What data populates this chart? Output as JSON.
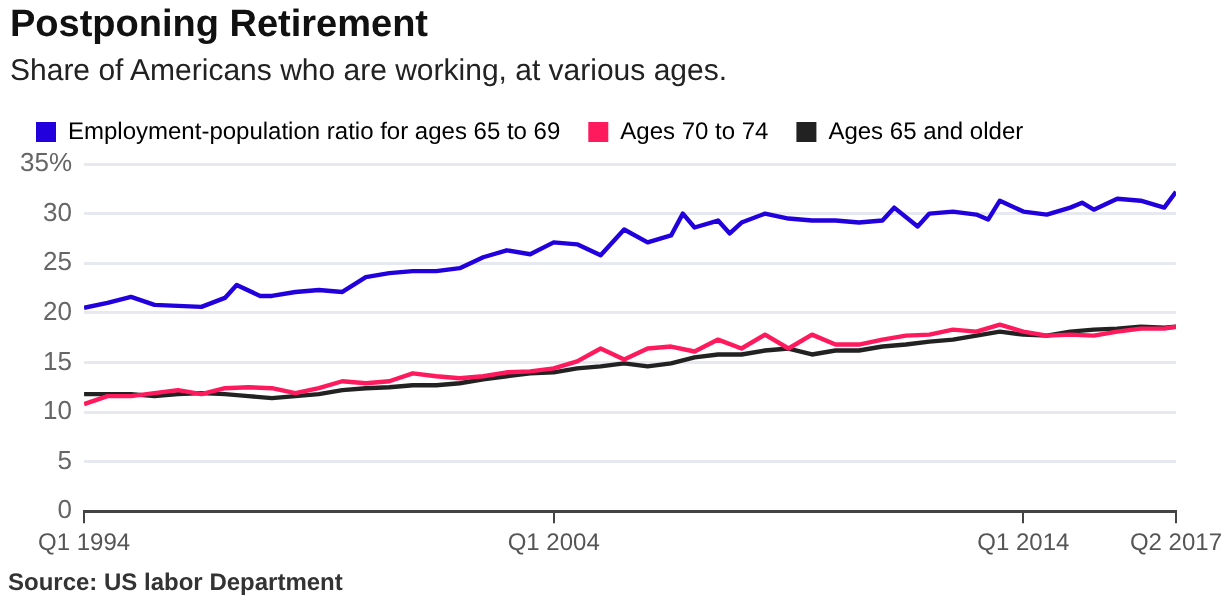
{
  "chart_data": {
    "type": "line",
    "title": "Postponing Retirement",
    "subtitle": "Share of Americans who are working, at various ages.",
    "annotations": [
      "Source: US labor Department"
    ],
    "x": [
      "1994-01",
      "1994-07",
      "1995-01",
      "1995-07",
      "1996-01",
      "1996-07",
      "1997-01",
      "1997-07",
      "1998-01",
      "1998-07",
      "1999-01",
      "1999-07",
      "2000-01",
      "2000-07",
      "2001-01",
      "2001-07",
      "2002-01",
      "2002-07",
      "2003-01",
      "2003-07",
      "2004-01",
      "2004-07",
      "2005-01",
      "2005-07",
      "2006-01",
      "2006-07",
      "2007-01",
      "2007-07",
      "2008-01",
      "2008-07",
      "2009-01",
      "2009-07",
      "2010-01",
      "2010-07",
      "2011-01",
      "2011-07",
      "2012-01",
      "2012-07",
      "2013-01",
      "2013-07",
      "2014-01",
      "2014-07",
      "2015-01",
      "2015-07",
      "2016-01",
      "2016-07",
      "2017-01",
      "2017-04"
    ],
    "series": [
      {
        "name": "Employment-population ratio for ages 65 to 69",
        "color": "#2200dd",
        "x": [
          "1994-01",
          "1994-07",
          "1995-01",
          "1995-07",
          "1996-01",
          "1996-07",
          "1997-01",
          "1997-04",
          "1997-10",
          "1998-01",
          "1998-07",
          "1999-01",
          "1999-07",
          "2000-01",
          "2000-07",
          "2001-01",
          "2001-07",
          "2002-01",
          "2002-07",
          "2003-01",
          "2003-07",
          "2004-01",
          "2004-07",
          "2005-01",
          "2005-07",
          "2006-01",
          "2006-07",
          "2006-10",
          "2007-01",
          "2007-07",
          "2007-10",
          "2008-01",
          "2008-07",
          "2009-01",
          "2009-07",
          "2010-01",
          "2010-07",
          "2011-01",
          "2011-04",
          "2011-10",
          "2012-01",
          "2012-07",
          "2013-01",
          "2013-04",
          "2013-07",
          "2014-01",
          "2014-07",
          "2015-01",
          "2015-04",
          "2015-07",
          "2016-01",
          "2016-07",
          "2017-01",
          "2017-04"
        ],
        "values": [
          20.5,
          21.0,
          21.6,
          20.8,
          20.7,
          20.6,
          21.5,
          22.8,
          21.7,
          21.7,
          22.1,
          22.3,
          22.1,
          23.6,
          24.0,
          24.2,
          24.2,
          24.5,
          25.6,
          26.3,
          25.9,
          27.1,
          26.9,
          25.8,
          28.4,
          27.1,
          27.8,
          30.0,
          28.6,
          29.3,
          28.0,
          29.1,
          30.0,
          29.5,
          29.3,
          29.3,
          29.1,
          29.3,
          30.6,
          28.7,
          30.0,
          30.2,
          29.9,
          29.4,
          31.3,
          30.2,
          29.9,
          30.6,
          31.1,
          30.4,
          31.5,
          31.3,
          30.6,
          32.2
        ]
      },
      {
        "name": "Ages 70 to 74",
        "color": "#ff1a5e",
        "values": [
          10.8,
          11.6,
          11.6,
          11.9,
          12.2,
          11.8,
          12.4,
          12.5,
          12.4,
          11.9,
          12.4,
          13.1,
          12.9,
          13.1,
          13.9,
          13.6,
          13.4,
          13.6,
          14.0,
          14.1,
          14.4,
          15.1,
          16.4,
          15.3,
          16.4,
          16.6,
          16.1,
          17.3,
          16.4,
          17.8,
          16.4,
          17.8,
          16.8,
          16.8,
          17.3,
          17.7,
          17.8,
          18.3,
          18.1,
          18.8,
          18.1,
          17.7,
          17.8,
          17.7,
          18.1,
          18.4,
          18.4,
          18.6
        ]
      },
      {
        "name": "Ages 65 and older",
        "color": "#222222",
        "values": [
          11.8,
          11.8,
          11.8,
          11.6,
          11.8,
          11.9,
          11.8,
          11.6,
          11.4,
          11.6,
          11.8,
          12.2,
          12.4,
          12.5,
          12.7,
          12.7,
          12.9,
          13.3,
          13.6,
          13.9,
          14.0,
          14.4,
          14.6,
          14.9,
          14.6,
          14.9,
          15.5,
          15.8,
          15.8,
          16.2,
          16.4,
          15.8,
          16.2,
          16.2,
          16.6,
          16.8,
          17.1,
          17.3,
          17.7,
          18.1,
          17.8,
          17.7,
          18.1,
          18.3,
          18.4,
          18.6,
          18.5,
          18.6
        ]
      }
    ],
    "xlim": [
      "1994-01",
      "2017-04"
    ],
    "xticks": [
      {
        "value": "1994-01",
        "label": "Q1 1994"
      },
      {
        "value": "2004-01",
        "label": "Q1 2004"
      },
      {
        "value": "2014-01",
        "label": "Q1 2014"
      },
      {
        "value": "2017-04",
        "label": "Q2 2017"
      }
    ],
    "ylim": [
      0,
      35
    ],
    "yticks": [
      0,
      5,
      10,
      15,
      20,
      25,
      30,
      {
        "value": 35,
        "label": "35%"
      }
    ],
    "grid": "y",
    "legend": "top left",
    "marker": "none",
    "line_style": "solid"
  }
}
